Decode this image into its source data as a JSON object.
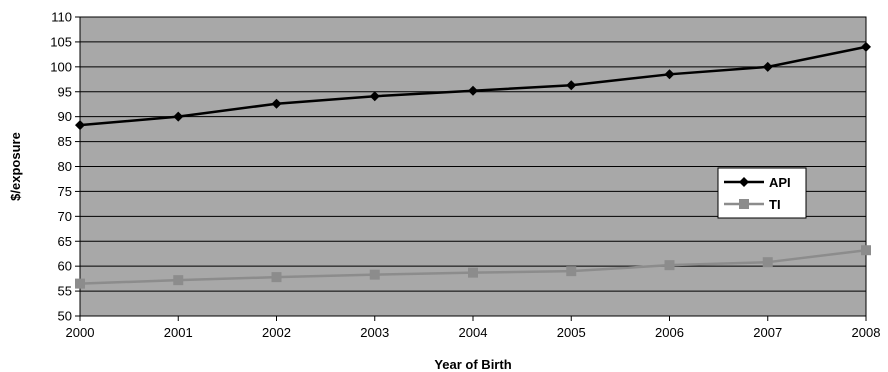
{
  "chart_data": {
    "type": "line",
    "title": "",
    "xlabel": "Year of Birth",
    "ylabel": "$/exposure",
    "x": [
      2000,
      2001,
      2002,
      2003,
      2004,
      2005,
      2006,
      2007,
      2008
    ],
    "xlim": [
      2000,
      2008
    ],
    "ylim": [
      50,
      110
    ],
    "yticks": [
      50,
      55,
      60,
      65,
      70,
      75,
      80,
      85,
      90,
      95,
      100,
      105,
      110
    ],
    "grid": true,
    "legend": "right",
    "plot_background": "#a8a8a8",
    "series": [
      {
        "name": "API",
        "color": "#000000",
        "marker": "diamond",
        "values": [
          88.3,
          90.0,
          92.6,
          94.1,
          95.2,
          96.3,
          98.5,
          100.0,
          104.0
        ]
      },
      {
        "name": "TI",
        "color": "#8c8c8c",
        "marker": "square",
        "values": [
          56.5,
          57.2,
          57.8,
          58.3,
          58.7,
          59.0,
          60.2,
          60.8,
          63.2
        ]
      }
    ]
  }
}
